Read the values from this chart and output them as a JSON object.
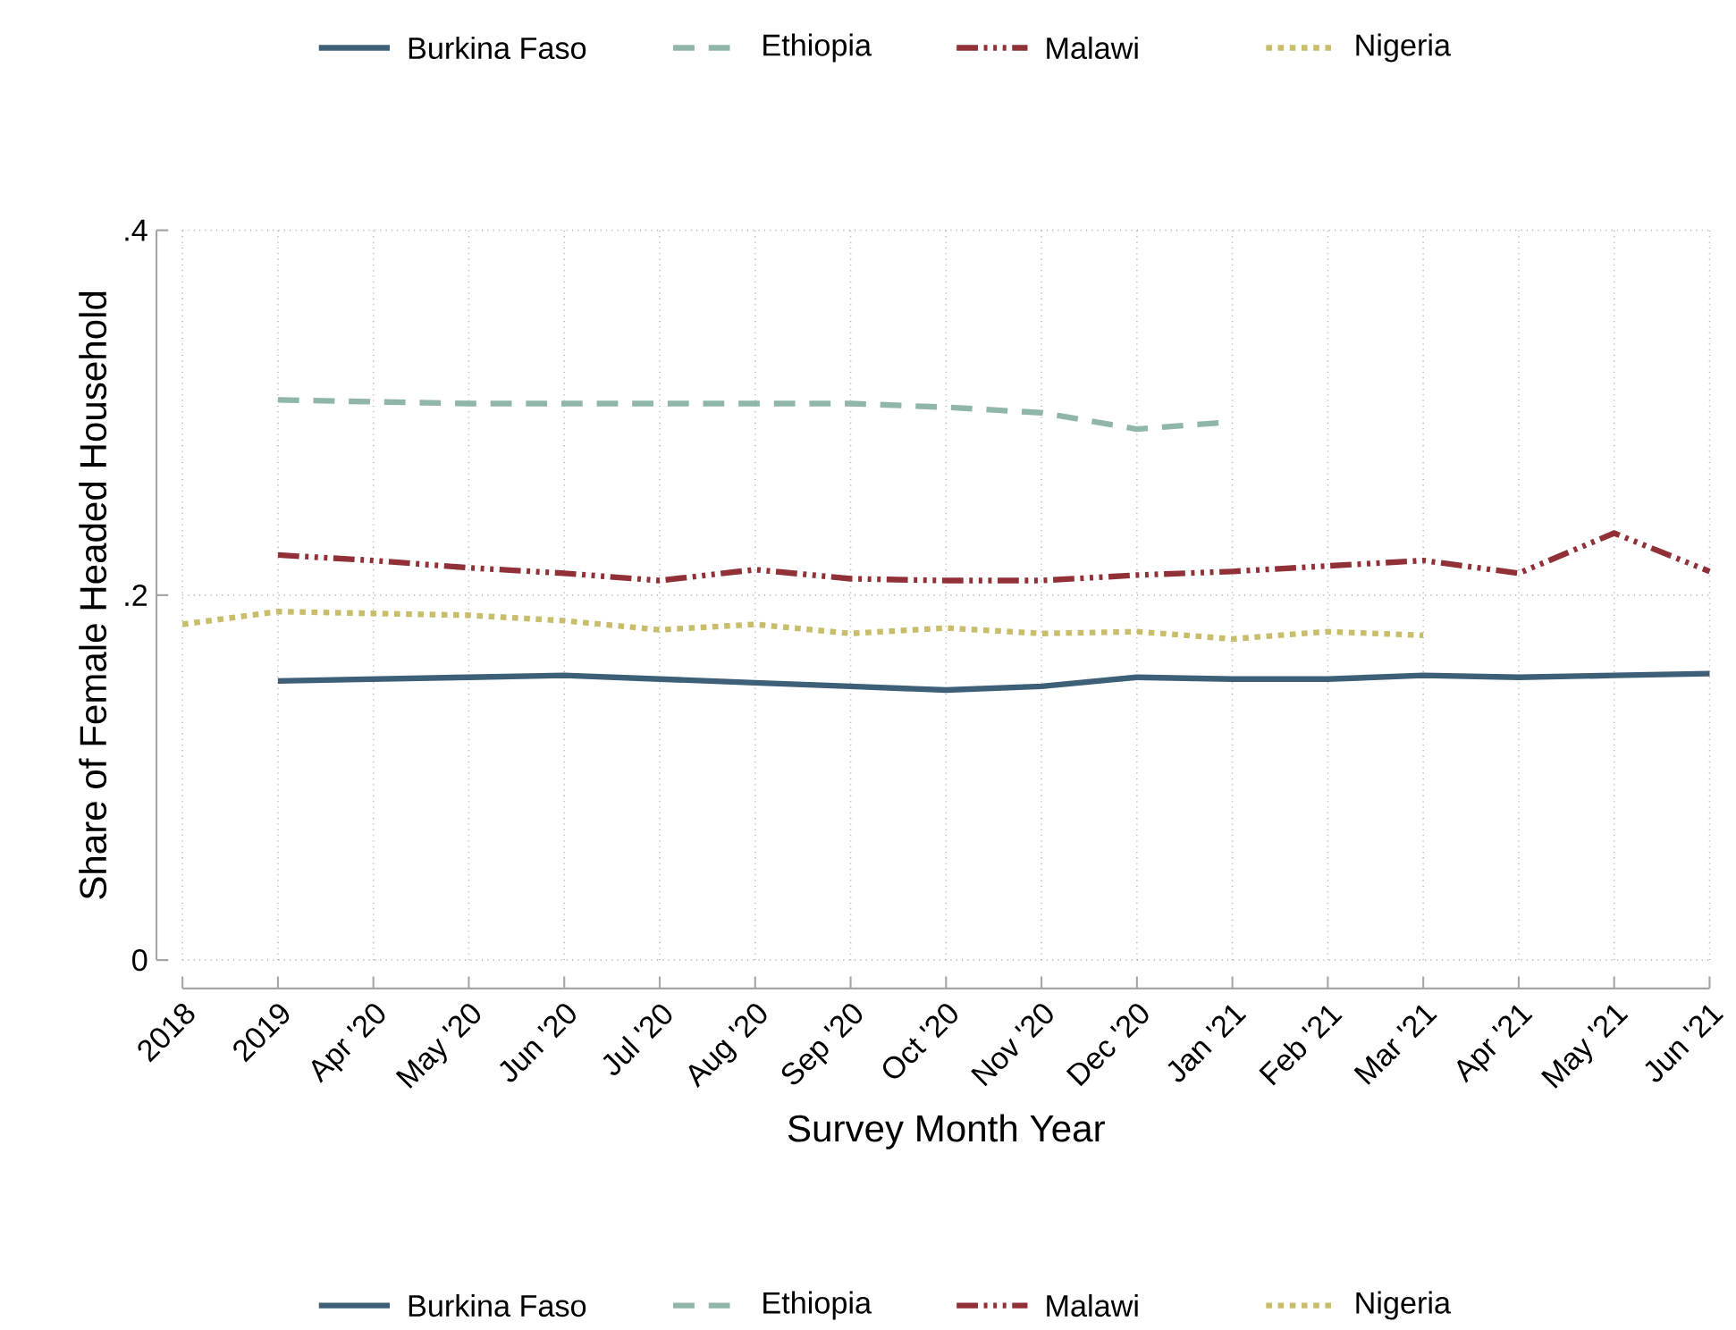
{
  "chart_data": {
    "type": "line",
    "xlabel": "Survey Month Year",
    "ylabel": "Share of Female Headed Household",
    "categories": [
      "2018",
      "2019",
      "Apr '20",
      "May '20",
      "Jun '20",
      "Jul '20",
      "Aug '20",
      "Sep '20",
      "Oct '20",
      "Nov '20",
      "Dec '20",
      "Jan '21",
      "Feb '21",
      "Mar '21",
      "Apr '21",
      "May '21",
      "Jun '21"
    ],
    "series": [
      {
        "name": "Burkina Faso",
        "color": "#3d5f78",
        "line_style": "solid",
        "values": [
          null,
          0.153,
          0.154,
          0.155,
          0.156,
          0.154,
          0.152,
          0.15,
          0.148,
          0.15,
          0.155,
          0.154,
          0.154,
          0.156,
          0.155,
          0.156,
          0.157
        ]
      },
      {
        "name": "Ethiopia",
        "color": "#90b6aa",
        "line_style": "dashed",
        "values": [
          null,
          0.307,
          0.306,
          0.305,
          0.305,
          0.305,
          0.305,
          0.305,
          0.303,
          0.3,
          0.291,
          0.295,
          null,
          null,
          null,
          null,
          null
        ]
      },
      {
        "name": "Malawi",
        "color": "#923038",
        "line_style": "dashdotted",
        "values": [
          null,
          0.222,
          0.219,
          0.215,
          0.212,
          0.208,
          0.214,
          0.209,
          0.208,
          0.208,
          0.211,
          0.213,
          0.216,
          0.219,
          0.212,
          0.234,
          0.213
        ]
      },
      {
        "name": "Nigeria",
        "color": "#c8bd6a",
        "line_style": "dotted",
        "values": [
          0.184,
          0.191,
          0.19,
          0.189,
          0.186,
          0.181,
          0.184,
          0.179,
          0.182,
          0.179,
          0.18,
          0.176,
          0.18,
          0.178,
          null,
          null,
          null
        ]
      }
    ],
    "ylim": [
      0,
      0.4
    ],
    "yticks": [
      0,
      {
        "value": 0.2,
        "label": ".2"
      },
      {
        "value": 0.4,
        "label": ".4"
      }
    ],
    "grid": true,
    "legend": [
      "top",
      "bottom"
    ]
  }
}
